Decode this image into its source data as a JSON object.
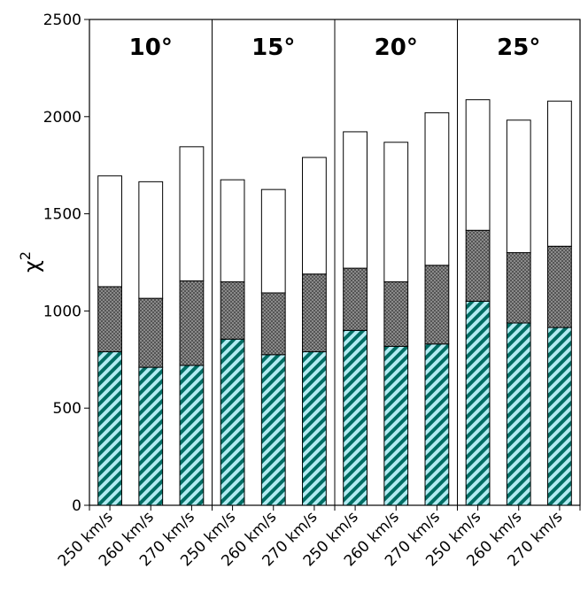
{
  "chart_data": {
    "type": "bar",
    "stacked": true,
    "ylabel_base": "χ",
    "ylabel_sup": "2",
    "ylim": [
      0,
      2500
    ],
    "yticks": [
      "0",
      "500",
      "1000",
      "1500",
      "2000",
      "2500"
    ],
    "grid": false,
    "groups": [
      {
        "label": "10°",
        "bars": [
          {
            "category": "250 km/s",
            "segments": [
              790,
              335,
              570
            ]
          },
          {
            "category": "260 km/s",
            "segments": [
              710,
              355,
              600
            ]
          },
          {
            "category": "270 km/s",
            "segments": [
              720,
              435,
              690
            ]
          }
        ]
      },
      {
        "label": "15°",
        "bars": [
          {
            "category": "250 km/s",
            "segments": [
              855,
              295,
              525
            ]
          },
          {
            "category": "260 km/s",
            "segments": [
              775,
              318,
              532
            ]
          },
          {
            "category": "270 km/s",
            "segments": [
              790,
              400,
              600
            ]
          }
        ]
      },
      {
        "label": "20°",
        "bars": [
          {
            "category": "250 km/s",
            "segments": [
              900,
              320,
              702
            ]
          },
          {
            "category": "260 km/s",
            "segments": [
              818,
              332,
              718
            ]
          },
          {
            "category": "270 km/s",
            "segments": [
              830,
              405,
              785
            ]
          }
        ]
      },
      {
        "label": "25°",
        "bars": [
          {
            "category": "250 km/s",
            "segments": [
              1050,
              365,
              672
            ]
          },
          {
            "category": "260 km/s",
            "segments": [
              938,
              362,
              682
            ]
          },
          {
            "category": "270 km/s",
            "segments": [
              915,
              418,
              747
            ]
          }
        ]
      }
    ]
  },
  "colors": {
    "hatch_background": "#ffffff",
    "hatch_stripe": "#00897b",
    "hatch_light": "#b2ebf2",
    "crosshatch_fill": "#7a7a7a",
    "empty_fill": "#ffffff",
    "edge": "#000000"
  }
}
